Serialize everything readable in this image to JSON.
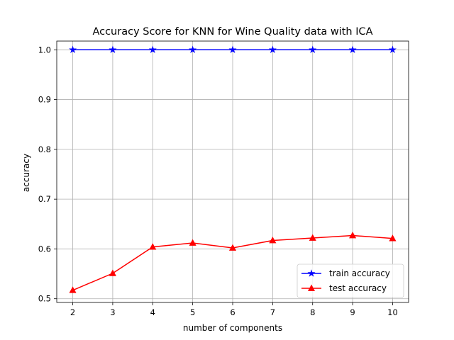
{
  "chart_data": {
    "type": "line",
    "title": "Accuracy Score for KNN for Wine Quality data with ICA",
    "xlabel": "number of components",
    "ylabel": "accuracy",
    "x": [
      2,
      3,
      4,
      5,
      6,
      7,
      8,
      9,
      10
    ],
    "xticks": [
      "2",
      "3",
      "4",
      "5",
      "6",
      "7",
      "8",
      "9",
      "10"
    ],
    "yticks": [
      "0.5",
      "0.6",
      "0.7",
      "0.8",
      "0.9",
      "1.0"
    ],
    "xlim": [
      1.6,
      10.4
    ],
    "ylim": [
      0.4925,
      1.0175
    ],
    "grid": true,
    "legend": "lower-right",
    "series": [
      {
        "name": "train accuracy",
        "color": "#0000ff",
        "marker": "star",
        "values": [
          1.0,
          1.0,
          1.0,
          1.0,
          1.0,
          1.0,
          1.0,
          1.0,
          1.0
        ]
      },
      {
        "name": "test accuracy",
        "color": "#ff0000",
        "marker": "triangle-up",
        "values": [
          0.517,
          0.551,
          0.604,
          0.612,
          0.602,
          0.617,
          0.622,
          0.627,
          0.621
        ]
      }
    ]
  }
}
